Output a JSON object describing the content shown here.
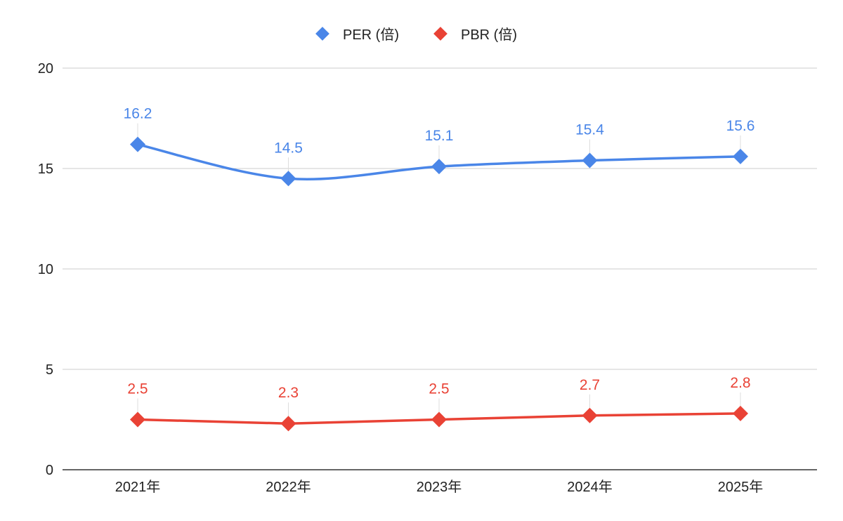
{
  "chart_data": {
    "type": "line",
    "title": "",
    "xlabel": "",
    "ylabel": "",
    "categories": [
      "2021年",
      "2022年",
      "2023年",
      "2024年",
      "2025年"
    ],
    "ylim": [
      0,
      20
    ],
    "yticks": [
      "0",
      "5",
      "10",
      "15",
      "20"
    ],
    "grid": true,
    "legend": "top-center",
    "series": [
      {
        "name": "PER (倍)",
        "color": "#4a86e8",
        "marker": "diamond",
        "smooth": true,
        "values": [
          16.2,
          14.5,
          15.1,
          15.4,
          15.6
        ],
        "labels": [
          "16.2",
          "14.5",
          "15.1",
          "15.4",
          "15.6"
        ]
      },
      {
        "name": "PBR (倍)",
        "color": "#e94235",
        "marker": "diamond",
        "smooth": false,
        "values": [
          2.5,
          2.3,
          2.5,
          2.7,
          2.8
        ],
        "labels": [
          "2.5",
          "2.3",
          "2.5",
          "2.7",
          "2.8"
        ]
      }
    ]
  }
}
